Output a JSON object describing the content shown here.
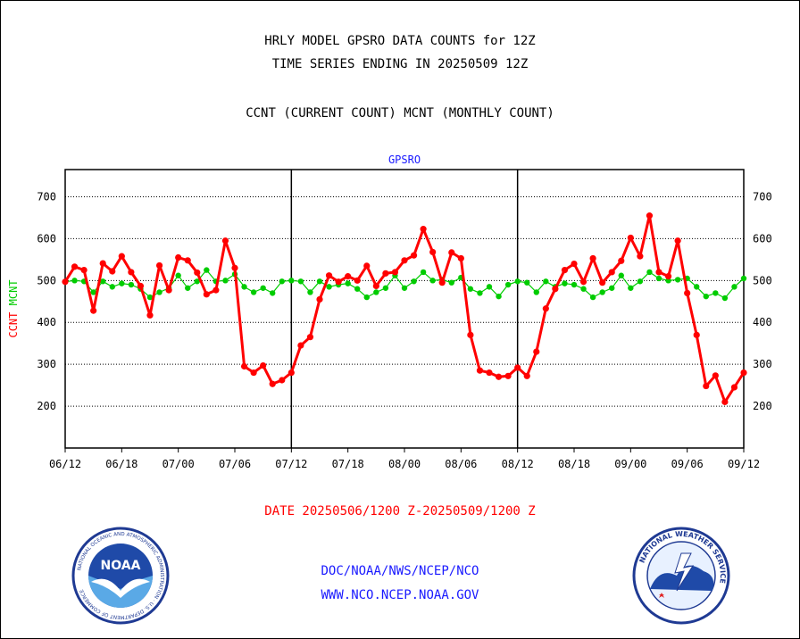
{
  "header": {
    "title_line1": "HRLY MODEL GPSRO DATA COUNTS for 12Z",
    "title_line2": "TIME SERIES ENDING IN 20250509 12Z",
    "subtitle": "CCNT (CURRENT COUNT) MCNT (MONTHLY COUNT)"
  },
  "chart_data": {
    "type": "line",
    "title": "GPSRO",
    "ylabel_left": [
      "CCNT",
      "MCNT"
    ],
    "y_ticks": [
      200,
      300,
      400,
      500,
      600,
      700
    ],
    "ylim": [
      100,
      765
    ],
    "xlim": [
      0,
      72
    ],
    "x_tick_labels": [
      "06/12",
      "06/18",
      "07/00",
      "07/06",
      "07/12",
      "07/18",
      "08/00",
      "08/06",
      "08/12",
      "08/18",
      "09/00",
      "09/06",
      "09/12"
    ],
    "x_tick_positions": [
      0,
      6,
      12,
      18,
      24,
      30,
      36,
      42,
      48,
      54,
      60,
      66,
      72
    ],
    "day_dividers": [
      24,
      48
    ],
    "grid": "horizontal dotted",
    "xlabel": "DATE 20250506/1200 Z-20250509/1200 Z",
    "series": [
      {
        "name": "CCNT",
        "color": "#ff0000",
        "x": [
          0,
          1,
          2,
          3,
          4,
          5,
          6,
          7,
          8,
          9,
          10,
          11,
          12,
          13,
          14,
          15,
          16,
          17,
          18,
          19,
          20,
          21,
          22,
          23,
          24,
          25,
          26,
          27,
          28,
          29,
          30,
          31,
          32,
          33,
          34,
          35,
          36,
          37,
          38,
          39,
          40,
          41,
          42,
          43,
          44,
          45,
          46,
          47,
          48,
          49,
          50,
          51,
          52,
          53,
          54,
          55,
          56,
          57,
          58,
          59,
          60,
          61,
          62,
          63,
          64,
          65,
          66,
          67,
          68,
          69,
          70,
          71,
          72
        ],
        "values": [
          497,
          533,
          525,
          428,
          541,
          522,
          558,
          520,
          487,
          417,
          536,
          477,
          555,
          548,
          519,
          467,
          477,
          595,
          530,
          295,
          280,
          297,
          253,
          262,
          280,
          345,
          365,
          455,
          512,
          497,
          510,
          500,
          535,
          487,
          517,
          520,
          548,
          560,
          623,
          568,
          495,
          567,
          553,
          370,
          285,
          280,
          270,
          272,
          292,
          272,
          330,
          433,
          480,
          525,
          540,
          497,
          553,
          495,
          520,
          547,
          602,
          558,
          655,
          520,
          510,
          595,
          470,
          370,
          248,
          273,
          210,
          245,
          280
        ]
      },
      {
        "name": "MCNT",
        "color": "#00cc00",
        "x": [
          0,
          1,
          2,
          3,
          4,
          5,
          6,
          7,
          8,
          9,
          10,
          11,
          12,
          13,
          14,
          15,
          16,
          17,
          18,
          19,
          20,
          21,
          22,
          23,
          24,
          25,
          26,
          27,
          28,
          29,
          30,
          31,
          32,
          33,
          34,
          35,
          36,
          37,
          38,
          39,
          40,
          41,
          42,
          43,
          44,
          45,
          46,
          47,
          48,
          49,
          50,
          51,
          52,
          53,
          54,
          55,
          56,
          57,
          58,
          59,
          60,
          61,
          62,
          63,
          64,
          65,
          66,
          67,
          68,
          69,
          70,
          71,
          72
        ],
        "values": [
          497,
          500,
          498,
          472,
          498,
          485,
          493,
          490,
          480,
          460,
          472,
          482,
          512,
          482,
          498,
          525,
          498,
          500,
          515,
          485,
          472,
          482,
          470,
          498,
          500,
          498,
          472,
          498,
          485,
          490,
          493,
          480,
          460,
          472,
          482,
          512,
          482,
          498,
          520,
          500,
          502,
          495,
          507,
          480,
          470,
          485,
          462,
          490,
          498,
          495,
          472,
          498,
          485,
          493,
          490,
          480,
          460,
          472,
          482,
          512,
          482,
          498,
          520,
          505,
          500,
          502,
          505,
          485,
          462,
          470,
          458,
          485,
          505
        ]
      }
    ]
  },
  "footer": {
    "date_line": "DATE 20250506/1200 Z-20250509/1200 Z",
    "credit_line1": "DOC/NOAA/NWS/NCEP/NCO",
    "credit_line2": "WWW.NCO.NCEP.NOAA.GOV"
  },
  "logos": {
    "noaa_text": "NOAA",
    "noaa_ring_text": "NATIONAL OCEANIC AND ATMOSPHERIC ADMINISTRATION · U.S. DEPARTMENT OF COMMERCE",
    "nws_ring_text": "NATIONAL WEATHER SERVICE"
  }
}
